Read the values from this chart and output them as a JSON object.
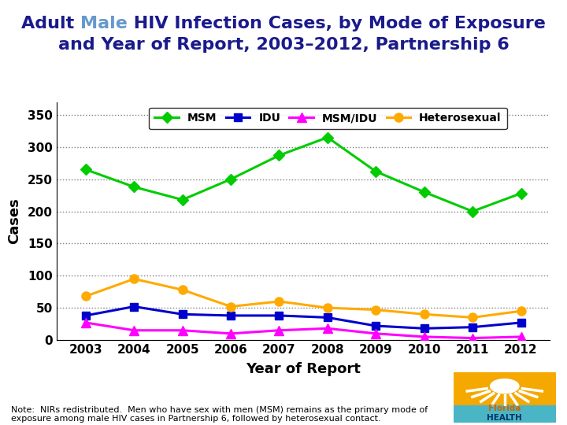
{
  "years": [
    2003,
    2004,
    2005,
    2006,
    2007,
    2008,
    2009,
    2010,
    2011,
    2012
  ],
  "MSM": [
    265,
    238,
    218,
    250,
    287,
    315,
    262,
    230,
    200,
    228
  ],
  "IDU": [
    38,
    52,
    40,
    38,
    38,
    35,
    22,
    18,
    20,
    27
  ],
  "MSM_IDU": [
    27,
    15,
    15,
    10,
    15,
    18,
    10,
    5,
    3,
    5
  ],
  "Heterosexual": [
    68,
    95,
    78,
    52,
    60,
    50,
    47,
    40,
    35,
    45
  ],
  "color_MSM": "#00cc00",
  "color_IDU": "#0000cc",
  "color_MSM_IDU": "#ff00ff",
  "color_Hetero": "#ffaa00",
  "xlabel": "Year of Report",
  "ylabel": "Cases",
  "ylim": [
    0,
    370
  ],
  "yticks": [
    0,
    50,
    100,
    150,
    200,
    250,
    300,
    350
  ],
  "note": "Note:  NIRs redistributed.  Men who have sex with men (MSM) remains as the primary mode of\nexposure among male HIV cases in Partnership 6, followed by heterosexual contact.",
  "bg_color": "#ffffff",
  "title_dark": "#1a1a8c",
  "title_male": "#6699cc",
  "title_fs": 16
}
